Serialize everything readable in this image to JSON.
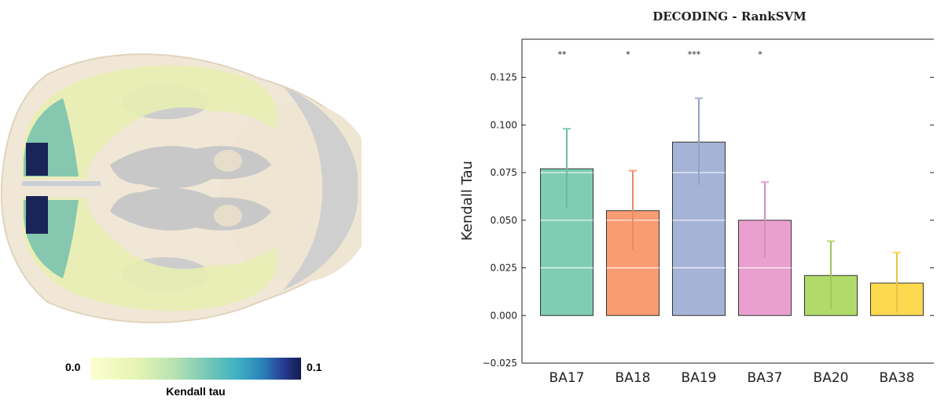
{
  "figure": {
    "colorbar": {
      "min_label": "0.0",
      "max_label": "0.1",
      "label": "Kendall tau"
    }
  },
  "chart_data": {
    "type": "bar",
    "title": "DECODING - RankSVM",
    "xlabel": "",
    "ylabel": "Kendall Tau",
    "ylim": [
      -0.025,
      0.145
    ],
    "yticks": [
      -0.025,
      0.0,
      0.025,
      0.05,
      0.075,
      0.1,
      0.125
    ],
    "ytick_labels": [
      "−0.025",
      "0.000",
      "0.025",
      "0.050",
      "0.075",
      "0.100",
      "0.125"
    ],
    "categories": [
      "BA17",
      "BA18",
      "BA19",
      "BA37",
      "BA20",
      "BA38"
    ],
    "values": [
      0.077,
      0.055,
      0.091,
      0.05,
      0.021,
      0.017
    ],
    "error_upper": [
      0.098,
      0.076,
      0.114,
      0.07,
      0.039,
      0.033
    ],
    "error_lower": [
      0.056,
      0.034,
      0.068,
      0.03,
      0.003,
      0.001
    ],
    "significance": [
      "**",
      "*",
      "***",
      "*",
      "",
      ""
    ],
    "colors": [
      "#7fcdb2",
      "#fb9b72",
      "#a5b4d6",
      "#e9a0cf",
      "#b0db6a",
      "#fdd94f"
    ],
    "grid": "horizontal white"
  }
}
